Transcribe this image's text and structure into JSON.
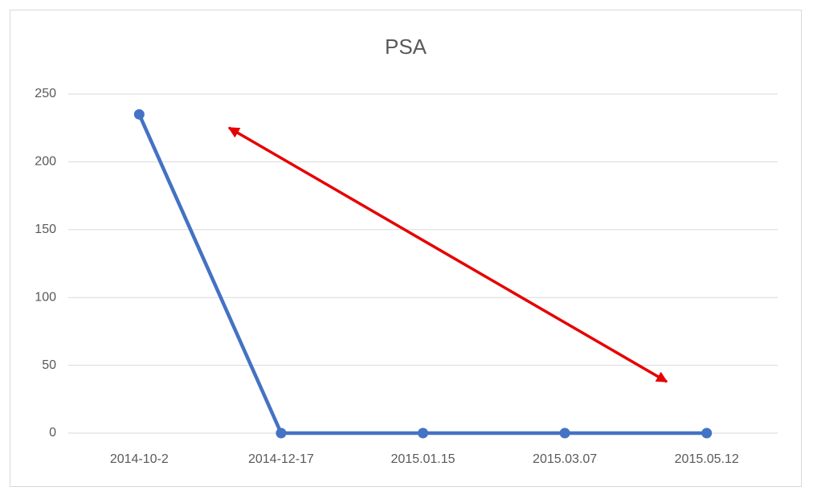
{
  "chart_data": {
    "type": "line",
    "title": "PSA",
    "categories": [
      "2014-10-2",
      "2014-12-17",
      "2015.01.15",
      "2015.03.07",
      "2015.05.12"
    ],
    "values": [
      235,
      0,
      0,
      0,
      0
    ],
    "color": "#4472c4",
    "ylim": [
      0,
      250
    ],
    "yticks": [
      0,
      50,
      100,
      150,
      200,
      250
    ],
    "grid": true
  }
}
